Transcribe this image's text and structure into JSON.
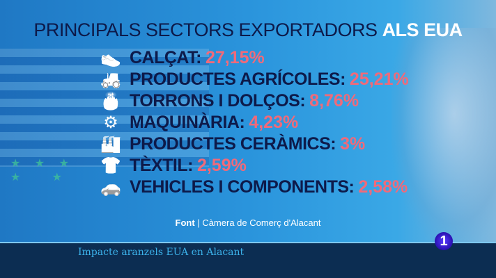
{
  "title": {
    "main": "PRINCIPALS SECTORS EXPORTADORS",
    "highlight": "ALS EUA"
  },
  "sectors": [
    {
      "icon": "shoe-icon",
      "glyph": "👟",
      "label": "CALÇAT:",
      "value": "27,15%"
    },
    {
      "icon": "tractor-icon",
      "glyph": "🚜",
      "label": "PRODUCTES AGRÍCOLES:",
      "value": "25,21%"
    },
    {
      "icon": "cake-icon",
      "glyph": "🎂",
      "label": "TORRONS I DOLÇOS:",
      "value": "8,76%"
    },
    {
      "icon": "robot-arm-icon",
      "glyph": "⚙",
      "label": "MAQUINÀRIA:",
      "value": "4,23%"
    },
    {
      "icon": "factory-icon",
      "glyph": "🏭",
      "label": "PRODUCTES CERÀMICS:",
      "value": "3%"
    },
    {
      "icon": "tshirt-icon",
      "glyph": "👕",
      "label": "TÈXTIL:",
      "value": "2,59%"
    },
    {
      "icon": "car-icon",
      "glyph": "🚗",
      "label": "VEHICLES I COMPONENTS:",
      "value": "2,58%"
    }
  ],
  "source": {
    "label": "Font",
    "text": "| Càmera de Comerç d'Alacant"
  },
  "lower_third": "Impacte aranzels EUA en Alacant",
  "channel_logo": "1",
  "colors": {
    "navy": "#0d1a4a",
    "accent": "#f06a7a",
    "bar": "#0c2d52"
  }
}
